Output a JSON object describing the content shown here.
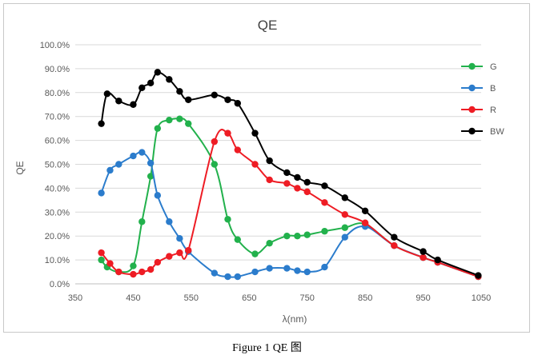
{
  "caption": "Figure 1 QE 图",
  "chart_data": {
    "type": "line",
    "title": "QE",
    "xlabel": "λ(nm)",
    "ylabel": "QE",
    "xlim": [
      350,
      1050
    ],
    "ylim": [
      0,
      100
    ],
    "x_ticks": [
      "350",
      "450",
      "550",
      "650",
      "750",
      "850",
      "950",
      "1050"
    ],
    "y_ticks": [
      "0.0%",
      "10.0%",
      "20.0%",
      "30.0%",
      "40.0%",
      "50.0%",
      "60.0%",
      "70.0%",
      "80.0%",
      "90.0%",
      "100.0%"
    ],
    "grid": "horizontal",
    "legend_position": "right",
    "series": [
      {
        "name": "G",
        "color": "#22b14c",
        "points": [
          [
            395,
            10
          ],
          [
            405,
            7
          ],
          [
            425,
            5
          ],
          [
            450,
            7.5
          ],
          [
            465,
            26
          ],
          [
            480,
            45
          ],
          [
            492,
            65
          ],
          [
            512,
            68.5
          ],
          [
            530,
            69
          ],
          [
            545,
            67
          ],
          [
            590,
            50
          ],
          [
            613,
            27
          ],
          [
            630,
            18.5
          ],
          [
            660,
            12.5
          ],
          [
            685,
            17
          ],
          [
            715,
            20
          ],
          [
            733,
            20
          ],
          [
            750,
            20.5
          ],
          [
            780,
            22
          ],
          [
            815,
            23.5
          ],
          [
            850,
            25
          ],
          [
            900,
            16
          ],
          [
            950,
            11
          ],
          [
            975,
            9
          ],
          [
            1045,
            3
          ]
        ]
      },
      {
        "name": "B",
        "color": "#2b7ccc",
        "points": [
          [
            395,
            38
          ],
          [
            410,
            47.5
          ],
          [
            425,
            50
          ],
          [
            450,
            53.5
          ],
          [
            465,
            55
          ],
          [
            480,
            50.5
          ],
          [
            492,
            37
          ],
          [
            512,
            26
          ],
          [
            530,
            19
          ],
          [
            545,
            13.5
          ],
          [
            590,
            4.5
          ],
          [
            613,
            3
          ],
          [
            630,
            3
          ],
          [
            660,
            5
          ],
          [
            685,
            6.5
          ],
          [
            715,
            6.5
          ],
          [
            733,
            5.5
          ],
          [
            750,
            5
          ],
          [
            780,
            7
          ],
          [
            815,
            19.5
          ],
          [
            850,
            24
          ],
          [
            900,
            16
          ],
          [
            950,
            11
          ],
          [
            975,
            9
          ],
          [
            1045,
            3
          ]
        ]
      },
      {
        "name": "R",
        "color": "#ee1c24",
        "points": [
          [
            395,
            13
          ],
          [
            410,
            8.5
          ],
          [
            425,
            5
          ],
          [
            450,
            4
          ],
          [
            465,
            5
          ],
          [
            480,
            6
          ],
          [
            492,
            9
          ],
          [
            512,
            11.5
          ],
          [
            530,
            13
          ],
          [
            545,
            14
          ],
          [
            590,
            59.5
          ],
          [
            613,
            63
          ],
          [
            630,
            56
          ],
          [
            660,
            50
          ],
          [
            685,
            43.5
          ],
          [
            715,
            42
          ],
          [
            733,
            40
          ],
          [
            750,
            38.5
          ],
          [
            780,
            34
          ],
          [
            815,
            29
          ],
          [
            850,
            25.5
          ],
          [
            900,
            16
          ],
          [
            950,
            11
          ],
          [
            975,
            9
          ],
          [
            1045,
            3
          ]
        ]
      },
      {
        "name": "BW",
        "color": "#000000",
        "points": [
          [
            395,
            67
          ],
          [
            405,
            79.5
          ],
          [
            425,
            76.5
          ],
          [
            450,
            75
          ],
          [
            465,
            82
          ],
          [
            480,
            84
          ],
          [
            492,
            88.5
          ],
          [
            512,
            85.5
          ],
          [
            530,
            80.5
          ],
          [
            545,
            77
          ],
          [
            590,
            79
          ],
          [
            613,
            77
          ],
          [
            630,
            75.5
          ],
          [
            660,
            63
          ],
          [
            685,
            51.5
          ],
          [
            715,
            46.5
          ],
          [
            733,
            44.5
          ],
          [
            750,
            42.5
          ],
          [
            780,
            41
          ],
          [
            815,
            36
          ],
          [
            850,
            30.5
          ],
          [
            900,
            19.5
          ],
          [
            950,
            13.5
          ],
          [
            975,
            10
          ],
          [
            1045,
            3.5
          ]
        ]
      }
    ]
  }
}
